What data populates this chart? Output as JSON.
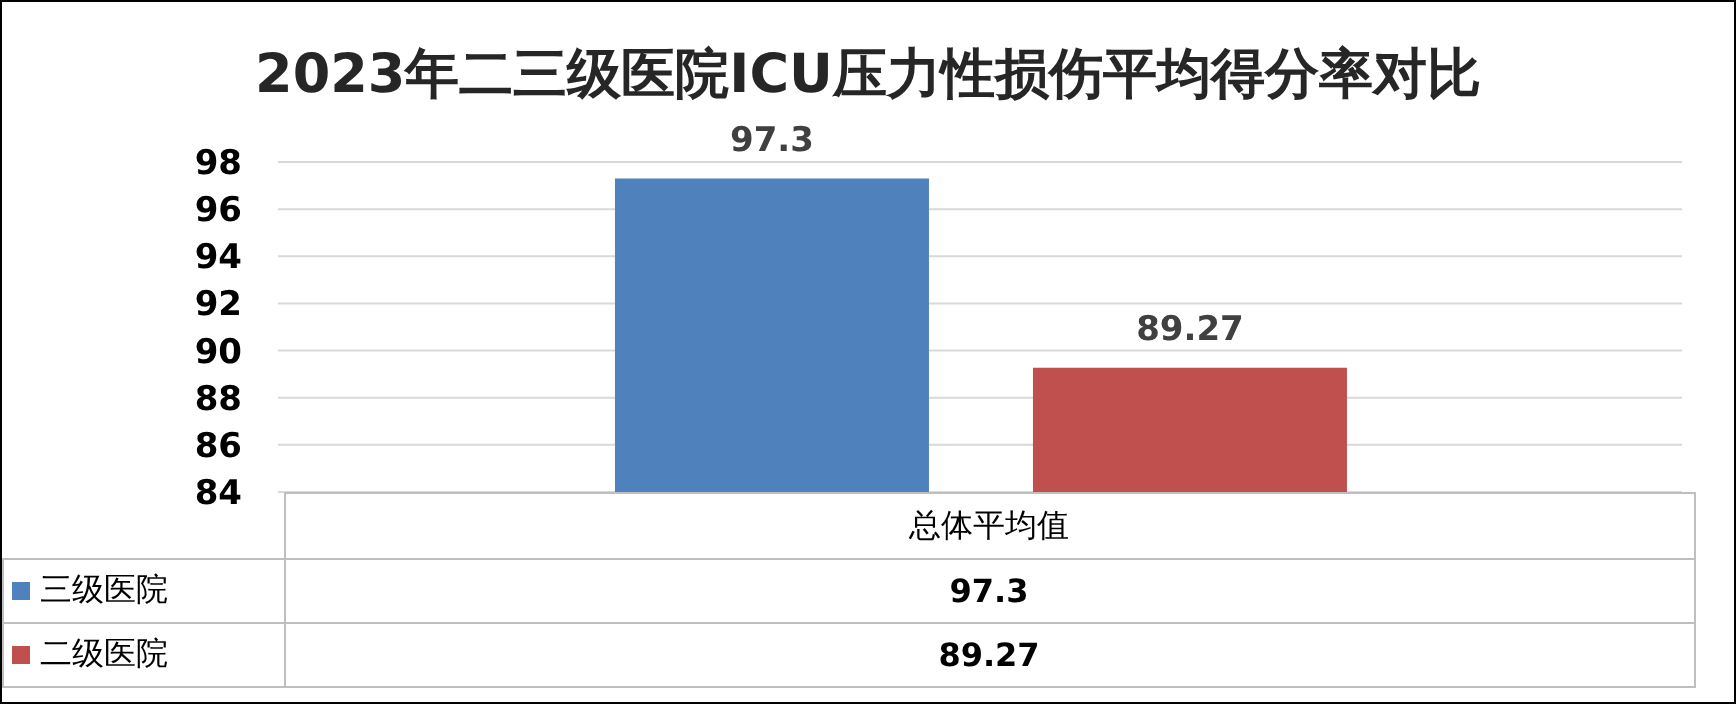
{
  "chart_data": {
    "type": "bar",
    "title": "2023年二三级医院ICU压力性损伤平均得分率对比",
    "categories": [
      "总体平均值"
    ],
    "series": [
      {
        "name": "三级医院",
        "color": "#4f81bd",
        "values": [
          97.3
        ],
        "value_labels": [
          "97.3"
        ]
      },
      {
        "name": "二级医院",
        "color": "#c0504d",
        "values": [
          89.27
        ],
        "value_labels": [
          "89.27"
        ]
      }
    ],
    "ylim": [
      84,
      98
    ],
    "yticks": [
      84,
      86,
      88,
      90,
      92,
      94,
      96,
      98
    ],
    "grid": "y",
    "legend": "bottom left"
  }
}
